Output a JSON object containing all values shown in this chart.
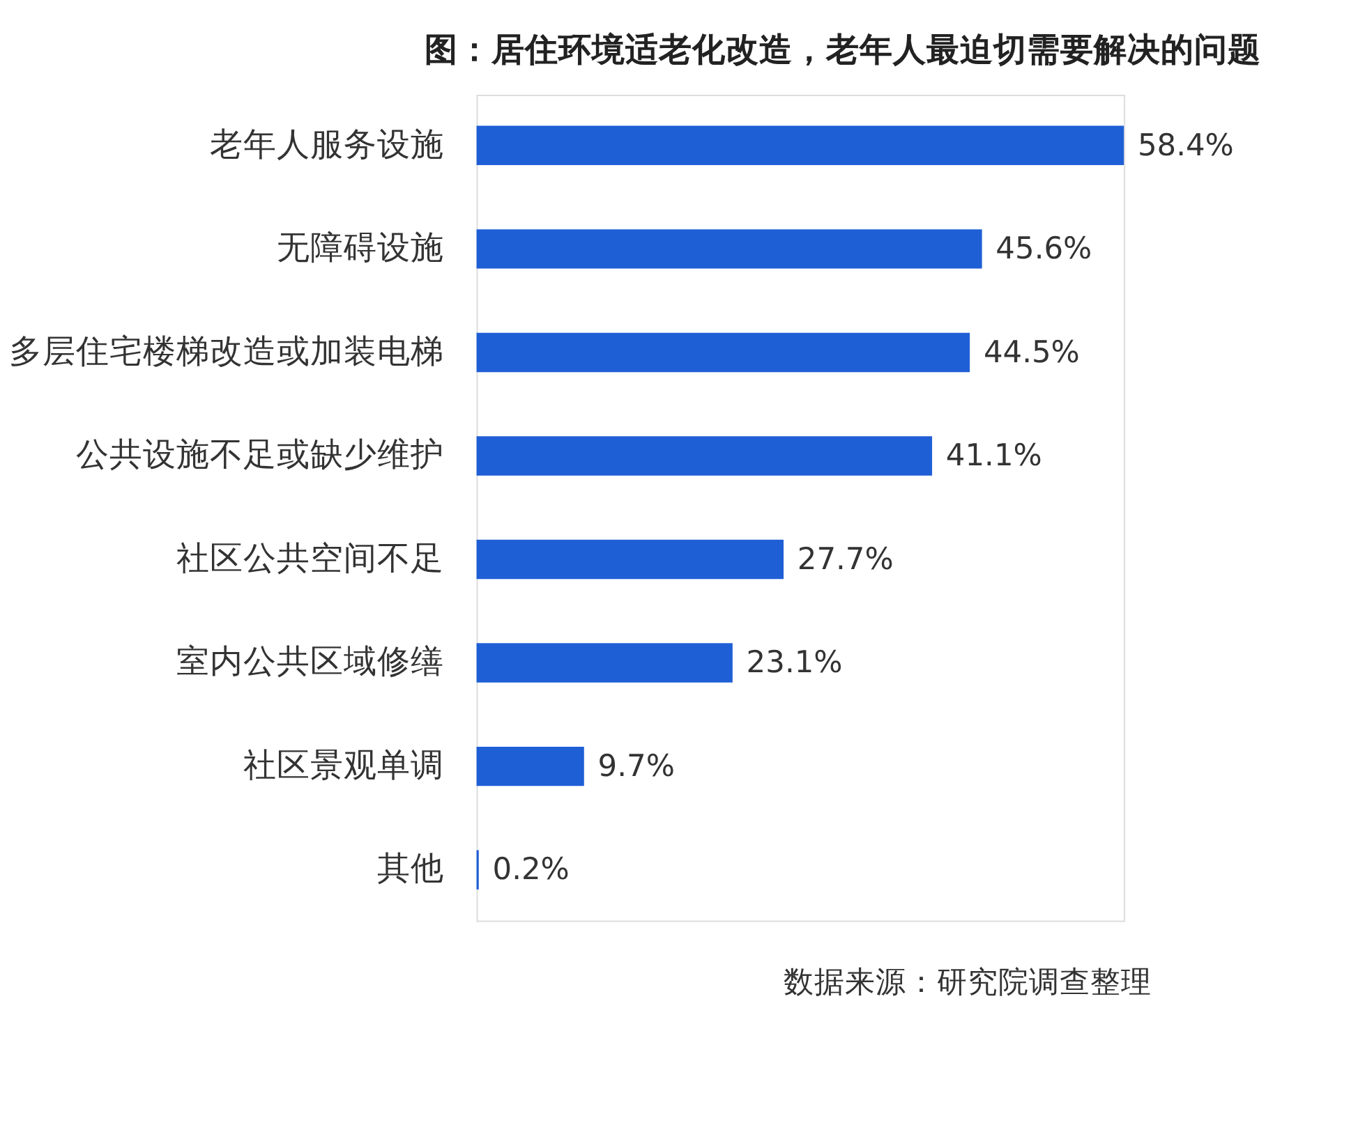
{
  "chart_data": {
    "type": "bar",
    "orientation": "horizontal",
    "title": "图：居住环境适老化改造，老年人最迫切需要解决的问题",
    "categories": [
      "老年人服务设施",
      "无障碍设施",
      "多层住宅楼梯改造或加装电梯",
      "公共设施不足或缺少维护",
      "社区公共空间不足",
      "室内公共区域修缮",
      "社区景观单调",
      "其他"
    ],
    "values": [
      58.4,
      45.6,
      44.5,
      41.1,
      27.7,
      23.1,
      9.7,
      0.2
    ],
    "value_labels": [
      "58.4%",
      "45.6%",
      "44.5%",
      "41.1%",
      "27.7%",
      "23.1%",
      "9.7%",
      "0.2%"
    ],
    "color": "#1f5fd6",
    "tick_labels": "y",
    "annotations": [
      "数据来源：研究院调查整理"
    ]
  }
}
